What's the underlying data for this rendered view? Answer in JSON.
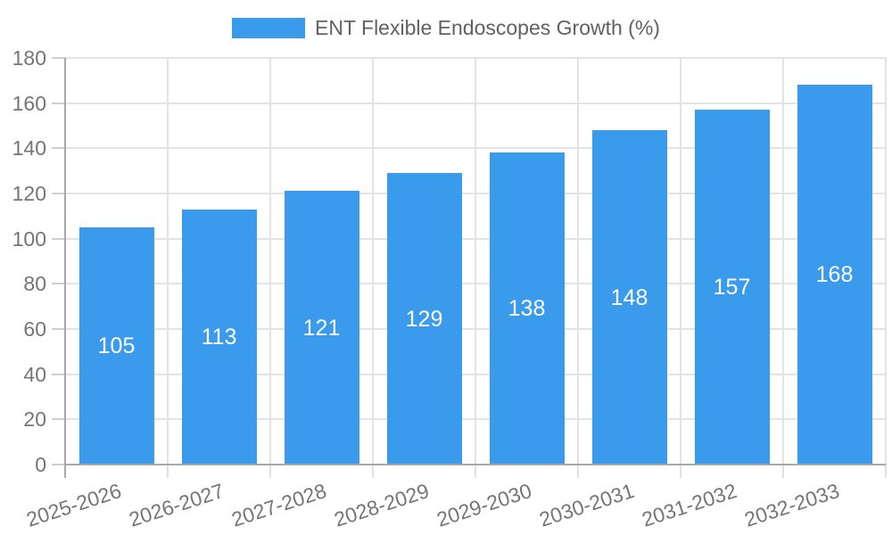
{
  "chart_data": {
    "type": "bar",
    "title": "ENT Flexible Endoscopes Growth (%)",
    "categories": [
      "2025-2026",
      "2026-2027",
      "2027-2028",
      "2028-2029",
      "2029-2030",
      "2030-2031",
      "2031-2032",
      "2032-2033"
    ],
    "values": [
      105,
      113,
      121,
      129,
      138,
      148,
      157,
      168
    ],
    "xlabel": "",
    "ylabel": "",
    "ylim": [
      0,
      180
    ],
    "ytick_step": 20,
    "yticks": [
      0,
      20,
      40,
      60,
      80,
      100,
      120,
      140,
      160,
      180
    ],
    "grid": true,
    "legend_position": "top",
    "bar_value_labels": true,
    "x_label_rotation_deg": -18,
    "colors": {
      "bar": "#3a9aec",
      "bar_label_text": "#ffffff",
      "grid_line": "#e3e3e3",
      "tick_mark": "#cfcfcf",
      "x_tick_mark": "#e0e0e0",
      "axis_line": "#a8a8a8",
      "tick_label_text": "#757575",
      "legend_text": "#616161",
      "background": "#ffffff"
    }
  }
}
